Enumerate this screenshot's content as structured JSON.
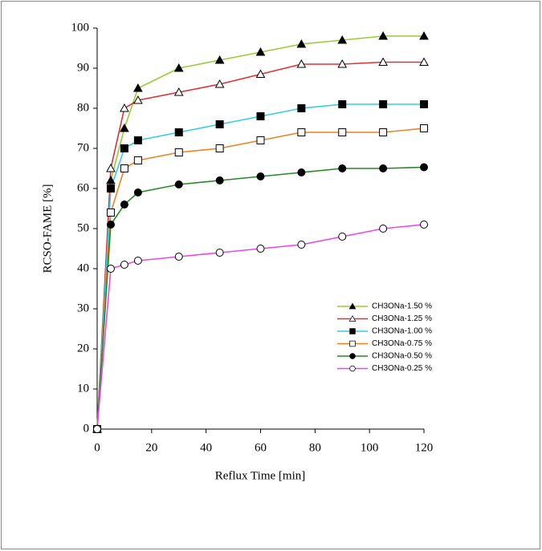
{
  "chart_data": {
    "type": "line",
    "xlabel": "Reflux Time [min]",
    "ylabel": "RCSO-FAME [%]",
    "x": [
      0,
      5,
      10,
      15,
      30,
      45,
      60,
      75,
      90,
      105,
      120
    ],
    "xlim": [
      0,
      120
    ],
    "xticks": [
      0,
      20,
      40,
      60,
      80,
      100,
      120
    ],
    "ylim": [
      0,
      100
    ],
    "yticks": [
      0,
      10,
      20,
      30,
      40,
      50,
      60,
      70,
      80,
      90,
      100
    ],
    "grid": false,
    "legend": "lower right",
    "series": [
      {
        "name": "CH3ONa-1.50 %",
        "color": "#99cc33",
        "marker": "triangle",
        "fill": true,
        "values": [
          0,
          62,
          75,
          85,
          90,
          92,
          94,
          96,
          97,
          98,
          98
        ]
      },
      {
        "name": "CH3ONa-1.25 %",
        "color": "#e03030",
        "marker": "triangle",
        "fill": false,
        "values": [
          0,
          65,
          80,
          82,
          84,
          86,
          88.5,
          91,
          91,
          91.5,
          91.5
        ]
      },
      {
        "name": "CH3ONa-1.00 %",
        "color": "#33ccee",
        "marker": "square",
        "fill": true,
        "values": [
          0,
          60,
          70,
          72,
          74,
          76,
          78,
          80,
          81,
          81,
          81
        ]
      },
      {
        "name": "CH3ONa-0.75 %",
        "color": "#f08020",
        "marker": "square",
        "fill": false,
        "values": [
          0,
          54,
          65,
          67,
          69,
          70,
          72,
          74,
          74,
          74,
          75
        ]
      },
      {
        "name": "CH3ONa-0.50 %",
        "color": "#228b22",
        "marker": "circle",
        "fill": true,
        "values": [
          0,
          51,
          56,
          59,
          61,
          62,
          63,
          64,
          65,
          65,
          65.3
        ]
      },
      {
        "name": "CH3ONa-0.25 %",
        "color": "#ee44ee",
        "marker": "circle",
        "fill": false,
        "values": [
          0,
          40,
          41,
          42,
          43,
          44,
          45,
          46,
          48,
          50,
          51
        ]
      }
    ]
  }
}
